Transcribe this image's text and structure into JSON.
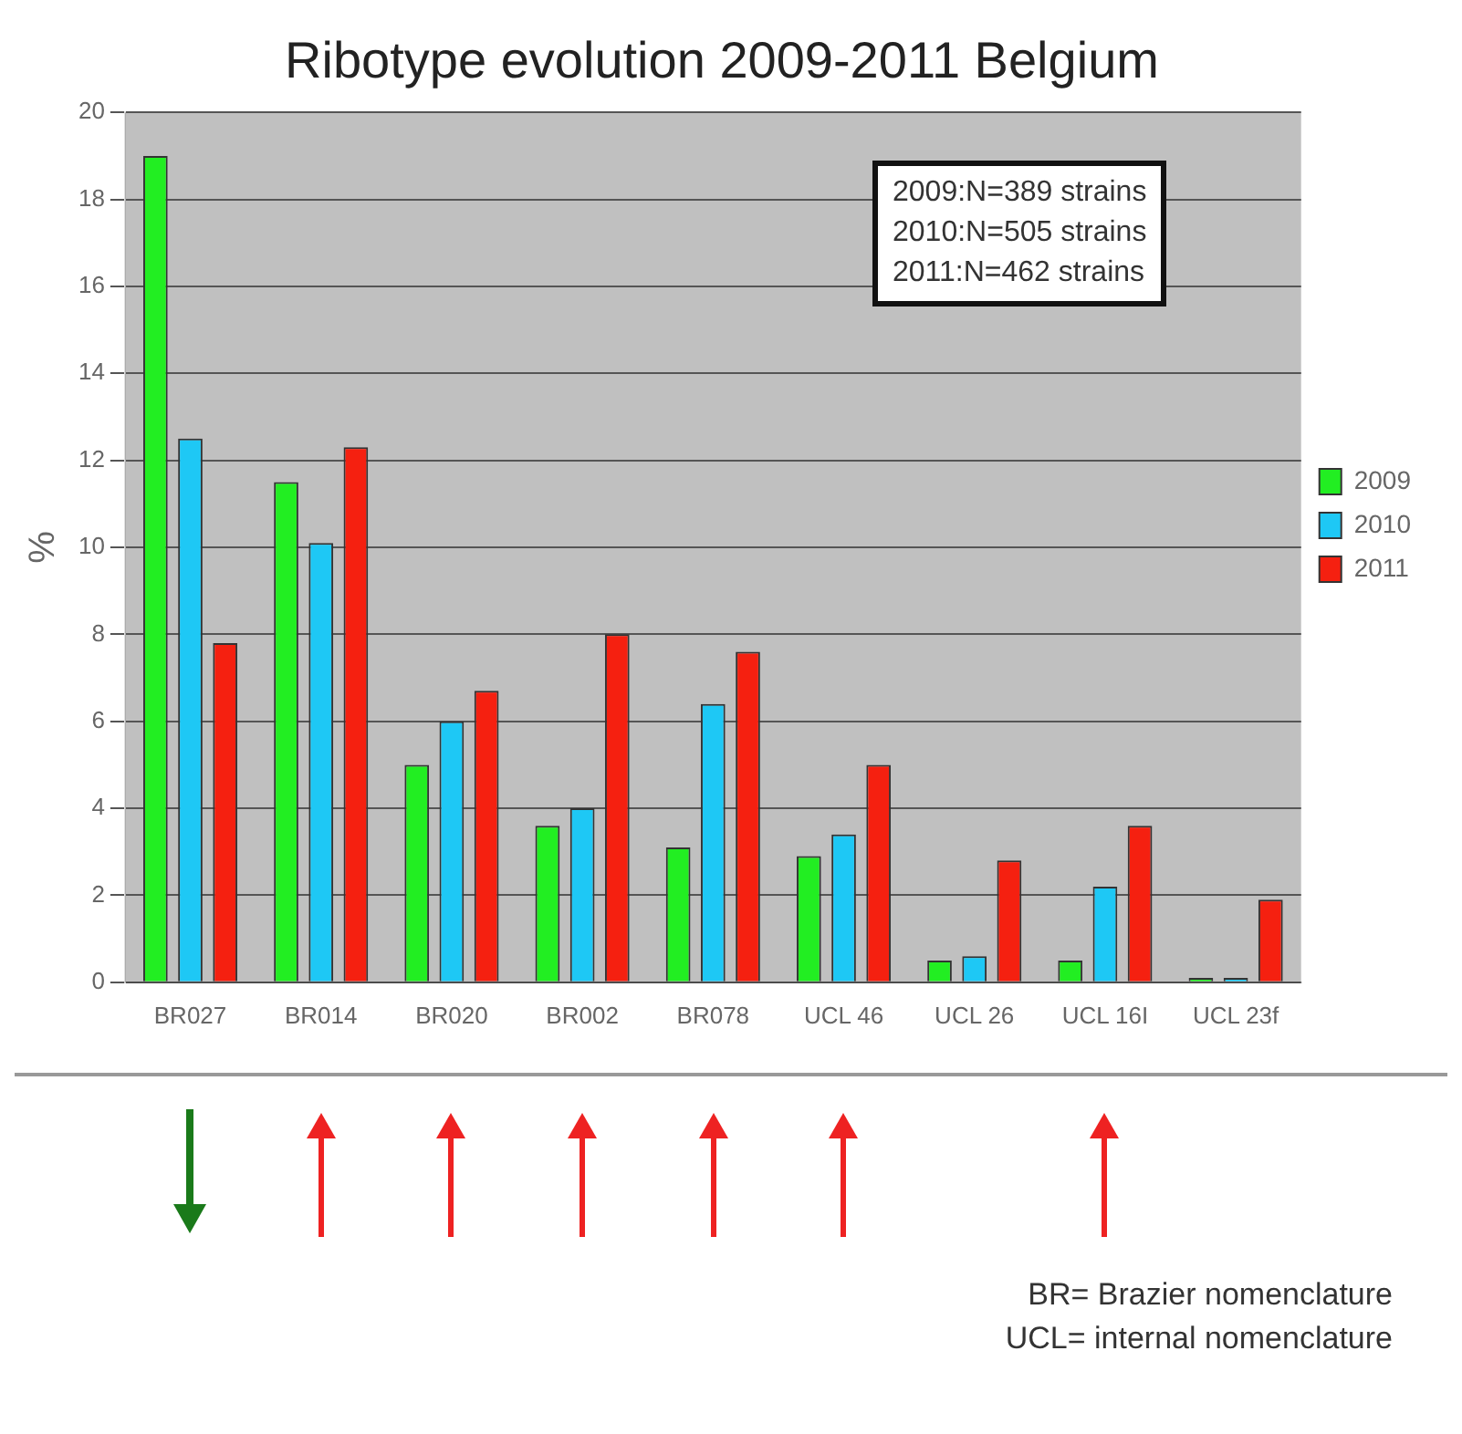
{
  "chart_data": {
    "type": "bar",
    "title": "Ribotype evolution 2009-2011 Belgium",
    "ylabel": "%",
    "categories": [
      "BR027",
      "BR014",
      "BR020",
      "BR002",
      "BR078",
      "UCL 46",
      "UCL 26",
      "UCL 16I",
      "UCL 23f"
    ],
    "series": [
      {
        "name": "2009",
        "color": "#22ee22",
        "values": [
          19,
          11.5,
          5,
          3.6,
          3.1,
          2.9,
          0.5,
          0.5,
          0.1
        ]
      },
      {
        "name": "2010",
        "color": "#1ec8f5",
        "values": [
          12.5,
          10.1,
          6,
          4,
          6.4,
          3.4,
          0.6,
          2.2,
          0.1
        ]
      },
      {
        "name": "2011",
        "color": "#f52010",
        "values": [
          7.8,
          12.3,
          6.7,
          8,
          7.6,
          5,
          2.8,
          3.6,
          1.9
        ]
      }
    ],
    "ylim": [
      0,
      20
    ],
    "yticks": [
      0,
      2,
      4,
      6,
      8,
      10,
      12,
      14,
      16,
      18,
      20
    ],
    "grid": "y",
    "legend": "right",
    "annotations": [
      "2009:N=389 strains",
      "2010:N=505 strains",
      "2011:N=462 strains",
      "BR= Brazier nomenclature",
      "UCL= internal nomenclature"
    ]
  }
}
